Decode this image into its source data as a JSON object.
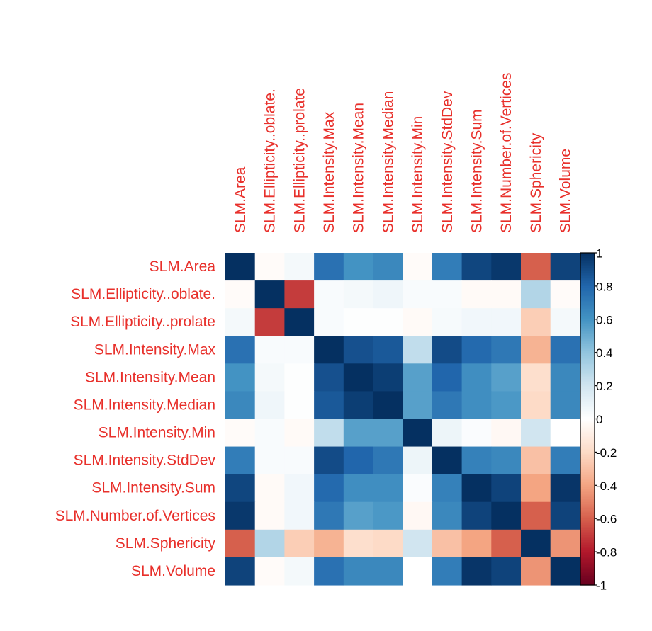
{
  "chart_data": {
    "type": "heatmap",
    "variables": [
      "SLM.Area",
      "SLM.Ellipticity..oblate.",
      "SLM.Ellipticity..prolate",
      "SLM.Intensity.Max",
      "SLM.Intensity.Mean",
      "SLM.Intensity.Median",
      "SLM.Intensity.Min",
      "SLM.Intensity.StdDev",
      "SLM.Intensity.Sum",
      "SLM.Number.of.Vertices",
      "SLM.Sphericity",
      "SLM.Volume"
    ],
    "matrix": [
      [
        1.0,
        -0.02,
        0.05,
        0.75,
        0.6,
        0.65,
        -0.02,
        0.7,
        0.92,
        0.97,
        -0.6,
        0.93
      ],
      [
        -0.02,
        1.0,
        -0.7,
        0.03,
        0.05,
        0.07,
        0.03,
        0.03,
        -0.03,
        -0.03,
        0.3,
        -0.02
      ],
      [
        0.05,
        -0.7,
        1.0,
        0.03,
        0.01,
        0.01,
        -0.03,
        0.04,
        0.06,
        0.06,
        -0.25,
        0.05
      ],
      [
        0.75,
        0.03,
        0.03,
        1.0,
        0.88,
        0.85,
        0.25,
        0.9,
        0.78,
        0.72,
        -0.35,
        0.75
      ],
      [
        0.6,
        0.05,
        0.01,
        0.88,
        1.0,
        0.95,
        0.55,
        0.8,
        0.62,
        0.55,
        -0.18,
        0.65
      ],
      [
        0.65,
        0.07,
        0.01,
        0.85,
        0.95,
        1.0,
        0.55,
        0.72,
        0.62,
        0.58,
        -0.2,
        0.65
      ],
      [
        -0.02,
        0.03,
        -0.03,
        0.25,
        0.55,
        0.55,
        1.0,
        0.08,
        0.02,
        -0.04,
        0.2,
        0.0
      ],
      [
        0.7,
        0.03,
        0.03,
        0.9,
        0.8,
        0.72,
        0.08,
        1.0,
        0.68,
        0.65,
        -0.3,
        0.7
      ],
      [
        0.92,
        -0.03,
        0.06,
        0.78,
        0.62,
        0.62,
        0.02,
        0.68,
        1.0,
        0.93,
        -0.4,
        0.98
      ],
      [
        0.97,
        -0.03,
        0.06,
        0.72,
        0.55,
        0.58,
        -0.04,
        0.65,
        0.93,
        1.0,
        -0.6,
        0.93
      ],
      [
        -0.6,
        0.3,
        -0.25,
        -0.35,
        -0.18,
        -0.2,
        0.2,
        -0.3,
        -0.4,
        -0.6,
        1.0,
        -0.45
      ],
      [
        0.93,
        -0.02,
        0.05,
        0.75,
        0.65,
        0.65,
        0.0,
        0.7,
        0.98,
        0.93,
        -0.45,
        1.0
      ]
    ],
    "colorbar": {
      "range": [
        -1,
        1
      ],
      "ticks": [
        "1",
        "0.8",
        "0.6",
        "0.4",
        "0.2",
        "0",
        "-0.2",
        "-0.4",
        "-0.6",
        "-0.8",
        "-1"
      ],
      "tick_values": [
        1,
        0.8,
        0.6,
        0.4,
        0.2,
        0,
        -0.2,
        -0.4,
        -0.6,
        -0.8,
        -1
      ],
      "stops": [
        "#67001F",
        "#B2182B",
        "#D6604D",
        "#F4A582",
        "#FDDBC7",
        "#FFFFFF",
        "#D1E5F0",
        "#92C5DE",
        "#4393C3",
        "#2166AC",
        "#053061"
      ]
    },
    "label_color": "#E8302B",
    "grid": false
  }
}
